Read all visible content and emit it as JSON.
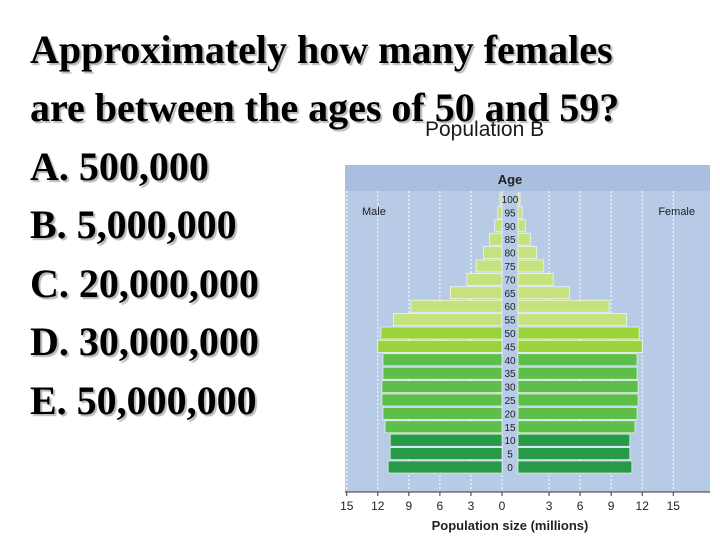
{
  "question": {
    "line1": "Approximately how many females",
    "line2": "are between the ages of 50 and 59?",
    "options": [
      {
        "text": "A. 500,000"
      },
      {
        "text": "B. 5,000,000"
      },
      {
        "text": "C. 20,000,000"
      },
      {
        "text": "D. 30,000,000"
      },
      {
        "text": "E. 50,000,000"
      }
    ]
  },
  "chart_data": {
    "type": "bar",
    "subtype": "population-pyramid",
    "title": "Population B",
    "ylabel": "Age",
    "xlabel": "Population size (millions)",
    "male_label": "Male",
    "female_label": "Female",
    "age_groups": [
      "0",
      "5",
      "10",
      "15",
      "20",
      "25",
      "30",
      "35",
      "40",
      "45",
      "50",
      "55",
      "60",
      "65",
      "70",
      "75",
      "80",
      "85",
      "90",
      "95",
      "100"
    ],
    "series": [
      {
        "name": "Male",
        "values": [
          11.0,
          10.8,
          10.8,
          11.3,
          11.5,
          11.6,
          11.6,
          11.5,
          11.5,
          12.0,
          11.7,
          10.5,
          8.8,
          5.0,
          3.4,
          2.5,
          1.8,
          1.2,
          0.7,
          0.4,
          0.2
        ]
      },
      {
        "name": "Female",
        "values": [
          11.0,
          10.8,
          10.8,
          11.3,
          11.5,
          11.6,
          11.6,
          11.5,
          11.5,
          12.0,
          11.7,
          10.5,
          8.8,
          5.0,
          3.4,
          2.5,
          1.8,
          1.2,
          0.7,
          0.4,
          0.2
        ]
      }
    ],
    "xticks": [
      "15",
      "12",
      "9",
      "6",
      "3",
      "0",
      "3",
      "6",
      "9",
      "12",
      "15"
    ],
    "xlim": [
      0,
      15
    ],
    "colors": {
      "plot_bg": "#b7cbe7",
      "grid": "#ffffff",
      "bar_light": "#9ad43a",
      "bar_mid": "#5dbf4a",
      "bar_dark": "#279a47",
      "bar_top": "#c6e27f"
    }
  }
}
